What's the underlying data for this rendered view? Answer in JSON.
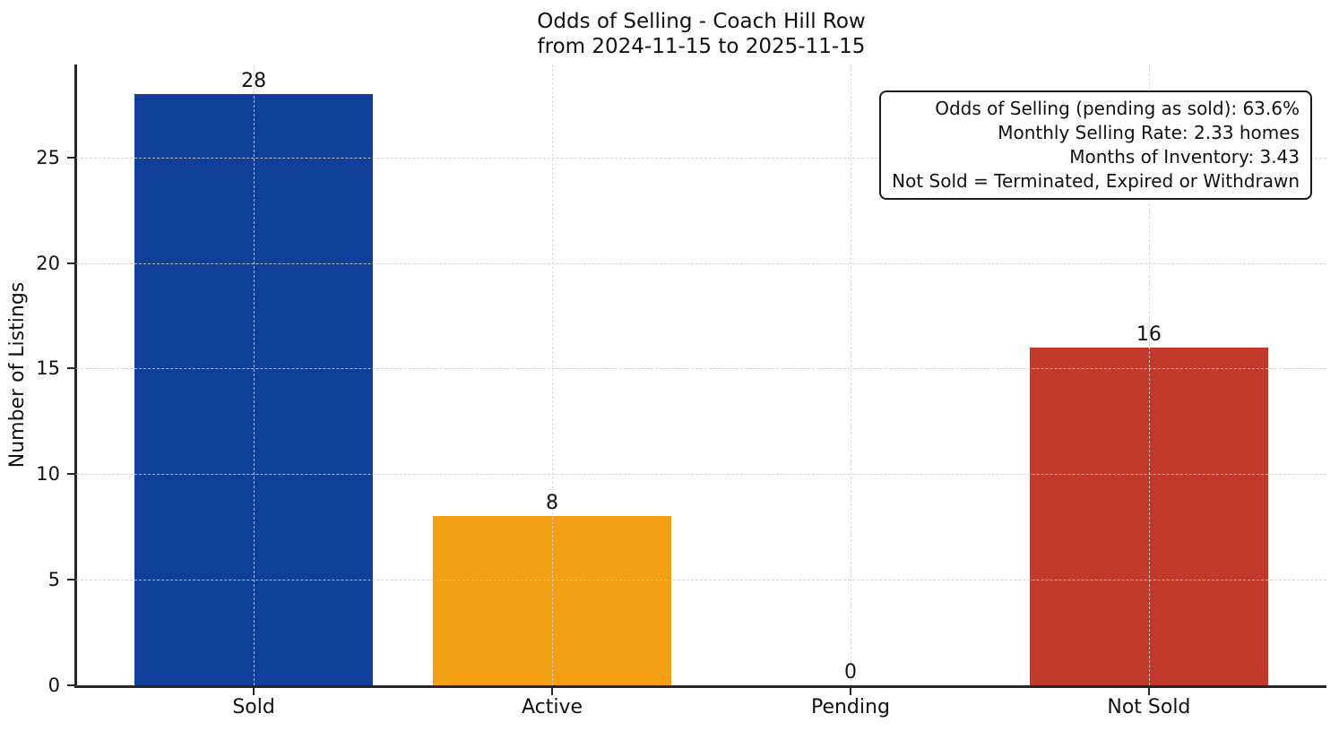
{
  "chart_data": {
    "type": "bar",
    "title": "Odds of Selling - Coach Hill Row",
    "subtitle": "from 2024-11-15 to 2025-11-15",
    "categories": [
      "Sold",
      "Active",
      "Pending",
      "Not Sold"
    ],
    "values": [
      28,
      8,
      0,
      16
    ],
    "value_labels": [
      "28",
      "8",
      "0",
      "16"
    ],
    "bar_colors": [
      "#103f9a",
      "#f39f13",
      "#999999",
      "#c0392b"
    ],
    "xlabel": "",
    "ylabel": "Number of Listings",
    "yticks": [
      0,
      5,
      10,
      15,
      20,
      25
    ],
    "ylim": [
      0,
      29.4
    ],
    "xlim": [
      -0.595,
      3.595
    ],
    "bar_width": 0.8,
    "grid": "dashed",
    "grid_color": "#d9d9d9",
    "spine_color": "#262626",
    "legend_position": "none",
    "annotation": {
      "position": "top-right",
      "align": "right",
      "lines": [
        "Odds of Selling (pending as sold): 63.6%",
        "Monthly Selling Rate: 2.33 homes",
        "Months of Inventory: 3.43",
        "Not Sold = Terminated, Expired or Withdrawn"
      ]
    }
  }
}
